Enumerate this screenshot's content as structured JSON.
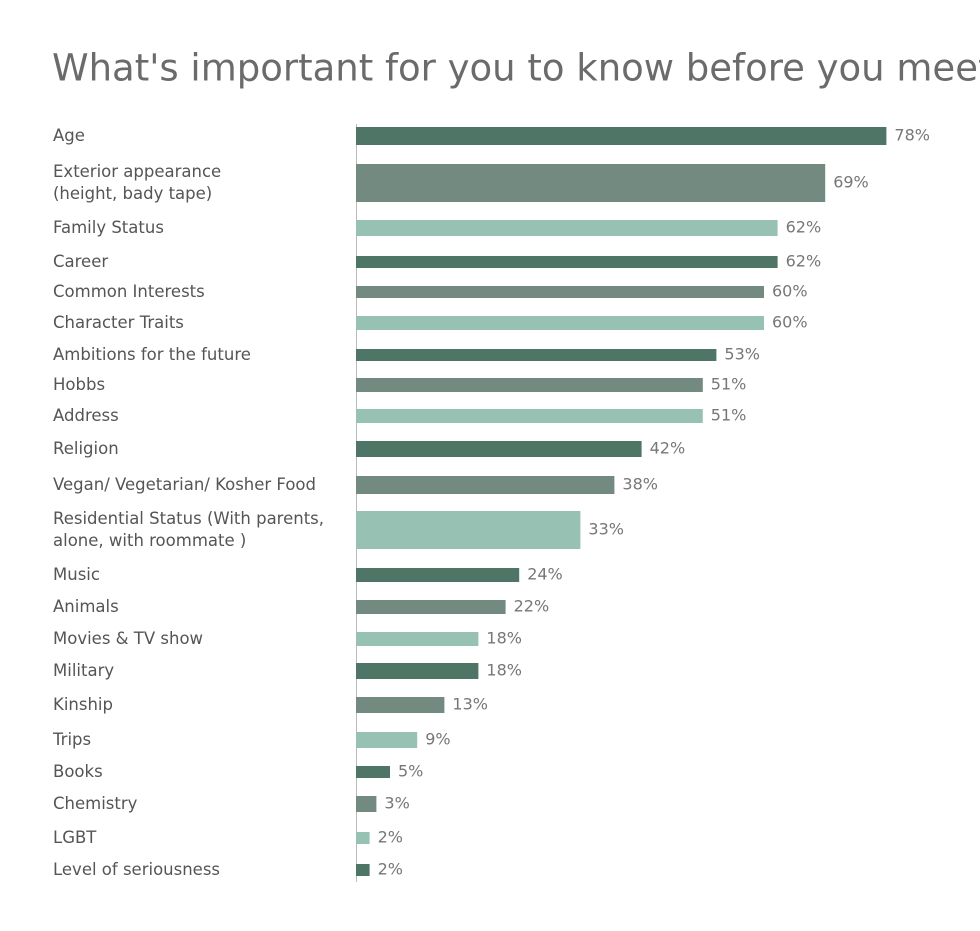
{
  "chart_data": {
    "type": "bar",
    "orientation": "horizontal",
    "title": "What's important for you to know before you meet?",
    "categories": [
      "Age",
      "Exterior appearance\n(height, bady tape)",
      "Family Status",
      "Career",
      "Common Interests",
      "Character Traits",
      "Ambitions for the future",
      "Hobbs",
      "Address",
      "Religion",
      "Vegan/ Vegetarian/ Kosher Food",
      "Residential Status (With parents,\nalone, with roommate )",
      "Music",
      "Animals",
      "Movies & TV show",
      "Military",
      "Kinship",
      "Trips",
      "Books",
      "Chemistry",
      "LGBT",
      "Level of seriousness"
    ],
    "values": [
      78,
      69,
      62,
      62,
      60,
      60,
      53,
      51,
      51,
      42,
      38,
      33,
      24,
      22,
      18,
      18,
      13,
      9,
      5,
      3,
      2,
      2
    ],
    "value_labels": [
      "78%",
      "69%",
      "62%",
      "62%",
      "60%",
      "60%",
      "53%",
      "51%",
      "51%",
      "42%",
      "38%",
      "33%",
      "24%",
      "22%",
      "18%",
      "18%",
      "13%",
      "9%",
      "5%",
      "3%",
      "2%",
      "2%"
    ],
    "colors": [
      "#4f7567",
      "#728a7f",
      "#97c2b3"
    ]
  }
}
